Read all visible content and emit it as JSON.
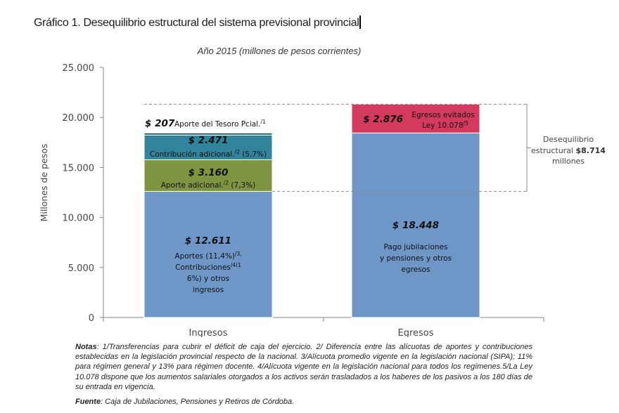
{
  "header": {
    "title": "Gráfico 1. Desequilibrio estructural del sistema previsional provincial"
  },
  "chart_data": {
    "type": "bar",
    "stacked": true,
    "title": "Año 2015 (millones de pesos corrientes)",
    "xlabel": "",
    "ylabel": "Millones de pesos",
    "ylim": [
      0,
      25000
    ],
    "yticks": [
      0,
      5000,
      10000,
      15000,
      20000,
      25000
    ],
    "ytick_labels": [
      "0",
      "5.000",
      "10.000",
      "15.000",
      "20.000",
      "25.000"
    ],
    "categories": [
      "Ingresos",
      "Egresos"
    ],
    "grid": false,
    "legend": "none",
    "bars": [
      {
        "category": "Ingresos",
        "segments": [
          {
            "value": 12611,
            "value_label": "$ 12.611",
            "label_lines": [
              "Aportes (11,4%)",
              "Contribuciones",
              "6%) y otros",
              "ingresos"
            ],
            "label_sups": [
              "/3,",
              "/4(1",
              "",
              ""
            ],
            "color": "#6e97c8"
          },
          {
            "value": 3160,
            "value_label": "$ 3.160",
            "label": "Aporte adicional.",
            "sup": "/2",
            "label_tail": " (7,3%)",
            "color": "#7d9440"
          },
          {
            "value": 2471,
            "value_label": "$ 2.471",
            "label": "Contribución adicional.",
            "sup": "/2",
            "label_tail": " (5,7%)",
            "color": "#31849b"
          },
          {
            "value": 207,
            "value_label": "$ 207",
            "label": "Aporte del Tesoro Pcial.",
            "sup": "/1",
            "color": "#215968"
          }
        ]
      },
      {
        "category": "Egresos",
        "segments": [
          {
            "value": 18448,
            "value_label": "$ 18.448",
            "label_lines": [
              "Pago jubilaciones",
              "y pensiones y otros",
              "egresos"
            ],
            "color": "#6e97c8"
          },
          {
            "value": 2876,
            "value_label": "$ 2.876",
            "label_lines": [
              "Egresos evitados",
              "Ley 10.078"
            ],
            "sup": "/5",
            "color": "#d43a5d"
          }
        ]
      }
    ],
    "annotation": {
      "lines": [
        "Desequilibrio",
        "estructural ",
        "millones"
      ],
      "bold": "$8.714",
      "from_value": 12611,
      "to_value": 21324
    }
  },
  "notes": {
    "label": "Notas",
    "text": ": 1/Transferencias para cubrir el déficit de caja del ejercicio. 2/ Diferencia entre las alícuotas de aportes y contribuciones establecidas en la legislación provincial respecto de la nacional. 3/Alícuota promedio vigente en la legislación nacional (SIPA); 11% para régimen general y 13% para régimen docente. 4/Alícuota vigente en la legislación nacional para todos los regímenes.5/La Ley 10.078 dispone que los aumentos salariales otorgados a los activos serán trasladados a los haberes de los pasivos a los 180 días de su entrada en vigencia."
  },
  "source": {
    "label": "Fuente",
    "text": ": Caja de Jubilaciones, Pensiones y Retiros de Córdoba."
  }
}
